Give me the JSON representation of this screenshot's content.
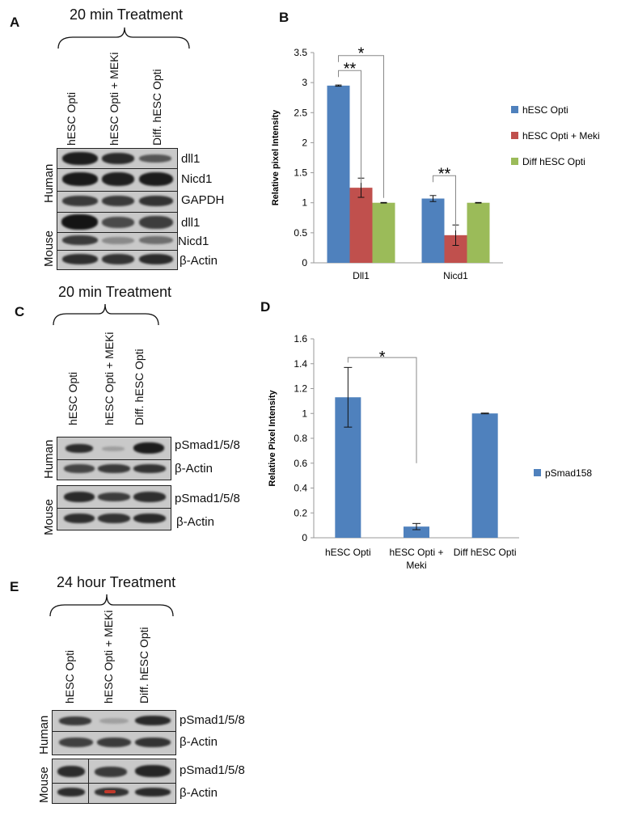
{
  "panels": {
    "A": {
      "letter": "A",
      "title": "20 min Treatment",
      "lanes": [
        "hESC Opti",
        "hESC Opti + MEKi",
        "Diff. hESC Opti"
      ],
      "groups": [
        {
          "species": "Human",
          "bands": [
            "dll1",
            "Nicd1",
            "GAPDH"
          ]
        },
        {
          "species": "Mouse",
          "bands": [
            "dll1",
            "Nicd1",
            "β-Actin"
          ]
        }
      ]
    },
    "B": {
      "letter": "B"
    },
    "C": {
      "letter": "C",
      "title": "20 min Treatment",
      "lanes": [
        "hESC Opti",
        "hESC Opti + MEKi",
        "Diff. hESC Opti"
      ],
      "groups": [
        {
          "species": "Human",
          "bands": [
            "pSmad1/5/8",
            "β-Actin"
          ]
        },
        {
          "species": "Mouse",
          "bands": [
            "pSmad1/5/8",
            "β-Actin"
          ]
        }
      ]
    },
    "D": {
      "letter": "D"
    },
    "E": {
      "letter": "E",
      "title": "24 hour Treatment",
      "lanes": [
        "hESC Opti",
        "hESC Opti + MEKi",
        "Diff. hESC Opti"
      ],
      "groups": [
        {
          "species": "Human",
          "bands": [
            "pSmad1/5/8",
            "β-Actin"
          ]
        },
        {
          "species": "Mouse",
          "bands": [
            "pSmad1/5/8",
            "β-Actin"
          ]
        }
      ]
    }
  },
  "chart_data": [
    {
      "type": "bar",
      "title": "",
      "xlabel": "",
      "ylabel": "Relative pixel Intensity",
      "categories": [
        "Dll1",
        "Nicd1"
      ],
      "series": [
        {
          "name": "hESC Opti",
          "values": [
            2.95,
            1.07
          ],
          "errors": [
            0.01,
            0.05
          ],
          "color": "#4f81bd"
        },
        {
          "name": "hESC Opti + Meki",
          "values": [
            1.25,
            0.46
          ],
          "errors": [
            0.16,
            0.17
          ],
          "color": "#c0504d"
        },
        {
          "name": "Diff hESC Opti",
          "values": [
            1.0,
            1.0
          ],
          "errors": [
            0.005,
            0.005
          ],
          "color": "#9bbb59"
        }
      ],
      "ylim": [
        0,
        3.5
      ],
      "yticks": [
        "0",
        "0.5",
        "1",
        "1.5",
        "2",
        "2.5",
        "3",
        "3.5"
      ],
      "legend_position": "right",
      "grid": false,
      "annotations": [
        "**",
        "*",
        "**"
      ]
    },
    {
      "type": "bar",
      "title": "",
      "xlabel": "",
      "ylabel": "Relative Pixel Intensity",
      "categories": [
        "hESC Opti",
        "hESC Opti + Meki",
        "Diff hESC Opti"
      ],
      "series": [
        {
          "name": "pSmad158",
          "values": [
            1.13,
            0.09,
            1.0
          ],
          "errors": [
            0.24,
            0.025,
            0.003
          ],
          "color": "#4f81bd"
        }
      ],
      "ylim": [
        0,
        1.6
      ],
      "yticks": [
        "0",
        "0.2",
        "0.4",
        "0.6",
        "0.8",
        "1",
        "1.2",
        "1.4",
        "1.6"
      ],
      "legend_position": "right",
      "grid": false,
      "annotations": [
        "*"
      ]
    }
  ]
}
